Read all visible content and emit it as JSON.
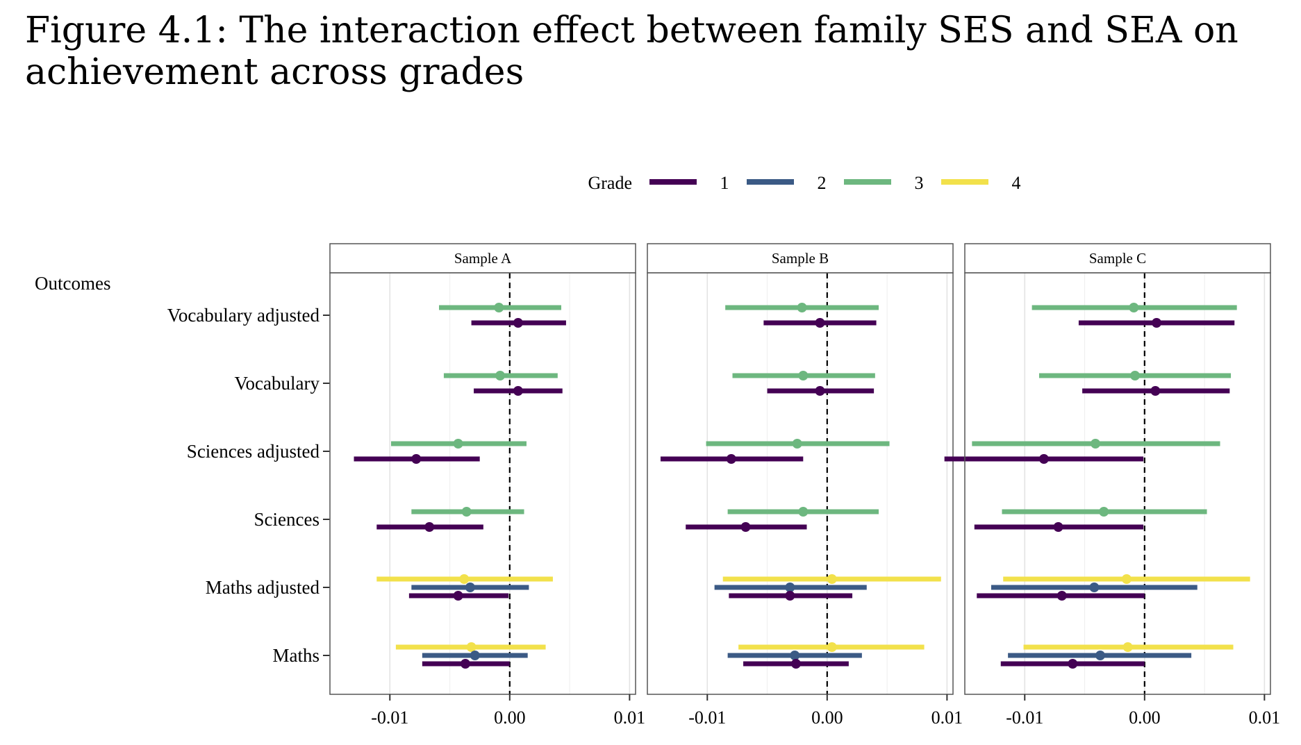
{
  "figure": {
    "title": "Figure 4.1: The interaction effect between family SES and SEA on achievement across grades"
  },
  "chart_data": {
    "type": "forest",
    "xlim": [
      -0.015,
      0.0105
    ],
    "xticks": [
      -0.01,
      0.0,
      0.01
    ],
    "xtick_labels": [
      "-0.01",
      "0.00",
      "0.01"
    ],
    "y_title": "Outcomes",
    "outcomes": [
      "Vocabulary adjusted",
      "Vocabulary",
      "Sciences adjusted",
      "Sciences",
      "Maths adjusted",
      "Maths"
    ],
    "legend": {
      "title": "Grade",
      "position": "top",
      "entries": [
        {
          "grade": "1",
          "label": "1",
          "color": "#440154"
        },
        {
          "grade": "2",
          "label": "2",
          "color": "#3B5A85"
        },
        {
          "grade": "3",
          "label": "3",
          "color": "#6DB77F"
        },
        {
          "grade": "4",
          "label": "4",
          "color": "#F2E14B"
        }
      ]
    },
    "panels": [
      {
        "label": "Sample A",
        "estimates": [
          {
            "outcome": "Vocabulary adjusted",
            "grade": "3",
            "est": -0.0009,
            "lo": -0.0059,
            "hi": 0.0043
          },
          {
            "outcome": "Vocabulary adjusted",
            "grade": "1",
            "est": 0.0007,
            "lo": -0.0032,
            "hi": 0.0047
          },
          {
            "outcome": "Vocabulary",
            "grade": "3",
            "est": -0.0008,
            "lo": -0.0055,
            "hi": 0.004
          },
          {
            "outcome": "Vocabulary",
            "grade": "1",
            "est": 0.0007,
            "lo": -0.003,
            "hi": 0.0044
          },
          {
            "outcome": "Sciences adjusted",
            "grade": "3",
            "est": -0.0043,
            "lo": -0.0099,
            "hi": 0.0014
          },
          {
            "outcome": "Sciences adjusted",
            "grade": "1",
            "est": -0.0078,
            "lo": -0.013,
            "hi": -0.0025
          },
          {
            "outcome": "Sciences",
            "grade": "3",
            "est": -0.0036,
            "lo": -0.0082,
            "hi": 0.0012
          },
          {
            "outcome": "Sciences",
            "grade": "1",
            "est": -0.0067,
            "lo": -0.0111,
            "hi": -0.0022
          },
          {
            "outcome": "Maths adjusted",
            "grade": "4",
            "est": -0.0038,
            "lo": -0.0111,
            "hi": 0.0036
          },
          {
            "outcome": "Maths adjusted",
            "grade": "2",
            "est": -0.0033,
            "lo": -0.0082,
            "hi": 0.0016
          },
          {
            "outcome": "Maths adjusted",
            "grade": "1",
            "est": -0.0043,
            "lo": -0.0084,
            "hi": -0.0001
          },
          {
            "outcome": "Maths",
            "grade": "4",
            "est": -0.0032,
            "lo": -0.0095,
            "hi": 0.003
          },
          {
            "outcome": "Maths",
            "grade": "2",
            "est": -0.0029,
            "lo": -0.0073,
            "hi": 0.0015
          },
          {
            "outcome": "Maths",
            "grade": "1",
            "est": -0.0037,
            "lo": -0.0073,
            "hi": 0.0
          }
        ]
      },
      {
        "label": "Sample B",
        "estimates": [
          {
            "outcome": "Vocabulary adjusted",
            "grade": "3",
            "est": -0.0021,
            "lo": -0.0085,
            "hi": 0.0043
          },
          {
            "outcome": "Vocabulary adjusted",
            "grade": "1",
            "est": -0.0006,
            "lo": -0.0053,
            "hi": 0.0041
          },
          {
            "outcome": "Vocabulary",
            "grade": "3",
            "est": -0.002,
            "lo": -0.0079,
            "hi": 0.004
          },
          {
            "outcome": "Vocabulary",
            "grade": "1",
            "est": -0.0006,
            "lo": -0.005,
            "hi": 0.0039
          },
          {
            "outcome": "Sciences adjusted",
            "grade": "3",
            "est": -0.0025,
            "lo": -0.0101,
            "hi": 0.0052
          },
          {
            "outcome": "Sciences adjusted",
            "grade": "1",
            "est": -0.008,
            "lo": -0.0139,
            "hi": -0.002
          },
          {
            "outcome": "Sciences",
            "grade": "3",
            "est": -0.002,
            "lo": -0.0083,
            "hi": 0.0043
          },
          {
            "outcome": "Sciences",
            "grade": "1",
            "est": -0.0068,
            "lo": -0.0118,
            "hi": -0.0017
          },
          {
            "outcome": "Maths adjusted",
            "grade": "4",
            "est": 0.0004,
            "lo": -0.0087,
            "hi": 0.0095
          },
          {
            "outcome": "Maths adjusted",
            "grade": "2",
            "est": -0.0031,
            "lo": -0.0094,
            "hi": 0.0033
          },
          {
            "outcome": "Maths adjusted",
            "grade": "1",
            "est": -0.0031,
            "lo": -0.0082,
            "hi": 0.0021
          },
          {
            "outcome": "Maths",
            "grade": "4",
            "est": 0.0004,
            "lo": -0.0074,
            "hi": 0.0081
          },
          {
            "outcome": "Maths",
            "grade": "2",
            "est": -0.0027,
            "lo": -0.0083,
            "hi": 0.0029
          },
          {
            "outcome": "Maths",
            "grade": "1",
            "est": -0.0026,
            "lo": -0.007,
            "hi": 0.0018
          }
        ]
      },
      {
        "label": "Sample C",
        "estimates": [
          {
            "outcome": "Vocabulary adjusted",
            "grade": "3",
            "est": -0.0009,
            "lo": -0.0094,
            "hi": 0.0077
          },
          {
            "outcome": "Vocabulary adjusted",
            "grade": "1",
            "est": 0.001,
            "lo": -0.0055,
            "hi": 0.0075
          },
          {
            "outcome": "Vocabulary",
            "grade": "3",
            "est": -0.0008,
            "lo": -0.0088,
            "hi": 0.0072
          },
          {
            "outcome": "Vocabulary",
            "grade": "1",
            "est": 0.0009,
            "lo": -0.0052,
            "hi": 0.0071
          },
          {
            "outcome": "Sciences adjusted",
            "grade": "3",
            "est": -0.0041,
            "lo": -0.0144,
            "hi": 0.0063
          },
          {
            "outcome": "Sciences adjusted",
            "grade": "1",
            "est": -0.0084,
            "lo": -0.0167,
            "hi": -0.0001
          },
          {
            "outcome": "Sciences",
            "grade": "3",
            "est": -0.0034,
            "lo": -0.0119,
            "hi": 0.0052
          },
          {
            "outcome": "Sciences",
            "grade": "1",
            "est": -0.0072,
            "lo": -0.0142,
            "hi": -0.0001
          },
          {
            "outcome": "Maths adjusted",
            "grade": "4",
            "est": -0.0015,
            "lo": -0.0118,
            "hi": 0.0088
          },
          {
            "outcome": "Maths adjusted",
            "grade": "2",
            "est": -0.0042,
            "lo": -0.0128,
            "hi": 0.0044
          },
          {
            "outcome": "Maths adjusted",
            "grade": "1",
            "est": -0.0069,
            "lo": -0.014,
            "hi": 0.0
          },
          {
            "outcome": "Maths",
            "grade": "4",
            "est": -0.0014,
            "lo": -0.0101,
            "hi": 0.0074
          },
          {
            "outcome": "Maths",
            "grade": "2",
            "est": -0.0037,
            "lo": -0.0114,
            "hi": 0.0039
          },
          {
            "outcome": "Maths",
            "grade": "1",
            "est": -0.006,
            "lo": -0.012,
            "hi": 0.0
          }
        ]
      }
    ]
  }
}
